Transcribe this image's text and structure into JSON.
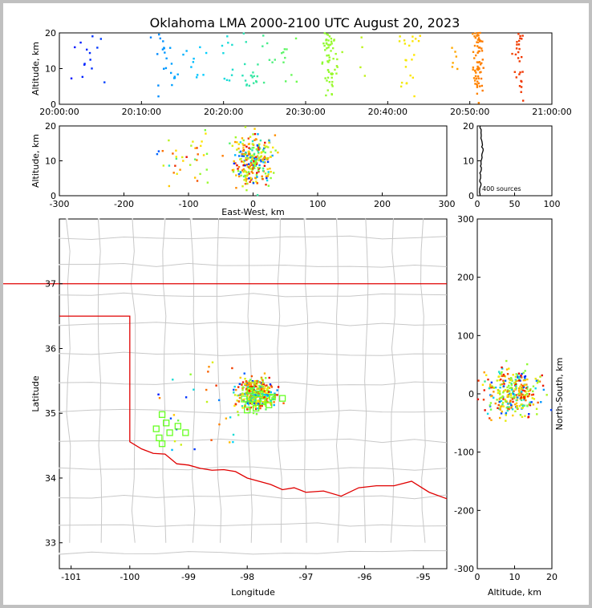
{
  "title": "Oklahoma LMA 2000-2100 UTC August 20, 2023",
  "chart_data": [
    {
      "id": "time_altitude",
      "type": "scatter",
      "xlabel": "",
      "ylabel": "Altitude, km",
      "xlim_minutes": [
        0,
        60
      ],
      "xticks": [
        "20:00:00",
        "20:10:00",
        "20:20:00",
        "20:30:00",
        "20:40:00",
        "20:50:00",
        "21:00:00"
      ],
      "ylim": [
        0,
        20
      ],
      "yticks": [
        "0",
        "10",
        "20"
      ],
      "color_encoding": "time (blue → cyan → green → yellow → orange → red)"
    },
    {
      "id": "eastwest_altitude",
      "type": "scatter",
      "xlabel": "East-West, km",
      "ylabel": "Altitude, km",
      "xlim": [
        -300,
        300
      ],
      "xticks": [
        "-300",
        "-200",
        "-100",
        "0",
        "100",
        "200",
        "300"
      ],
      "ylim": [
        0,
        20
      ],
      "yticks": [
        "0",
        "10",
        "20"
      ]
    },
    {
      "id": "altitude_histogram",
      "type": "line",
      "xlim": [
        0,
        100
      ],
      "xticks": [
        "0",
        "50",
        "100"
      ],
      "ylim": [
        0,
        20
      ],
      "yticks": [
        "0",
        "10",
        "20"
      ],
      "annotation": "400 sources"
    },
    {
      "id": "plan_view",
      "type": "scatter",
      "xlabel": "Longitude",
      "ylabel": "Latitude",
      "xlim": [
        -101.2,
        -94.6
      ],
      "ylim": [
        32.6,
        38.0
      ],
      "xticks": [
        "-101",
        "-100",
        "-99",
        "-98",
        "-97",
        "-96",
        "-95"
      ],
      "yticks": [
        "33",
        "34",
        "35",
        "36",
        "37"
      ],
      "network_stations": [
        {
          "lon": -99.45,
          "lat": 34.98
        },
        {
          "lon": -99.55,
          "lat": 34.76
        },
        {
          "lon": -99.38,
          "lat": 34.85
        },
        {
          "lon": -99.32,
          "lat": 34.7
        },
        {
          "lon": -99.5,
          "lat": 34.62
        },
        {
          "lon": -99.45,
          "lat": 34.53
        },
        {
          "lon": -99.18,
          "lat": 34.8
        },
        {
          "lon": -99.05,
          "lat": 34.7
        },
        {
          "lon": -97.57,
          "lat": 35.25
        },
        {
          "lon": -97.78,
          "lat": 35.3
        },
        {
          "lon": -97.95,
          "lat": 35.35
        },
        {
          "lon": -97.9,
          "lat": 35.22
        },
        {
          "lon": -98.05,
          "lat": 35.22
        },
        {
          "lon": -97.73,
          "lat": 35.18
        },
        {
          "lon": -98.0,
          "lat": 35.05
        },
        {
          "lon": -97.85,
          "lat": 35.08
        },
        {
          "lon": -97.63,
          "lat": 35.13
        },
        {
          "lon": -97.4,
          "lat": 35.23
        }
      ]
    },
    {
      "id": "altitude_northsouth",
      "type": "scatter",
      "xlabel": "Altitude, km",
      "ylabel": "North-South, km",
      "xlim": [
        0,
        20
      ],
      "xticks": [
        "0",
        "10",
        "20"
      ],
      "ylim": [
        -300,
        300
      ],
      "yticks": [
        "-300",
        "-200",
        "-100",
        "0",
        "100",
        "200",
        "300"
      ]
    }
  ]
}
